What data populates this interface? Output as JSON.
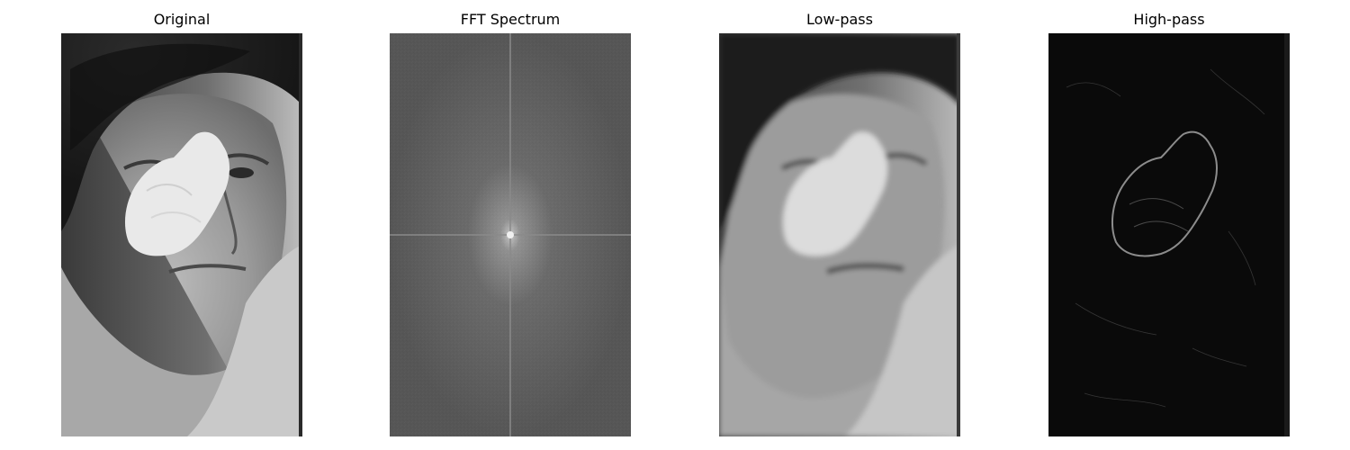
{
  "panels": [
    {
      "title": "Original"
    },
    {
      "title": "FFT Spectrum"
    },
    {
      "title": "Low-pass"
    },
    {
      "title": "High-pass"
    }
  ]
}
